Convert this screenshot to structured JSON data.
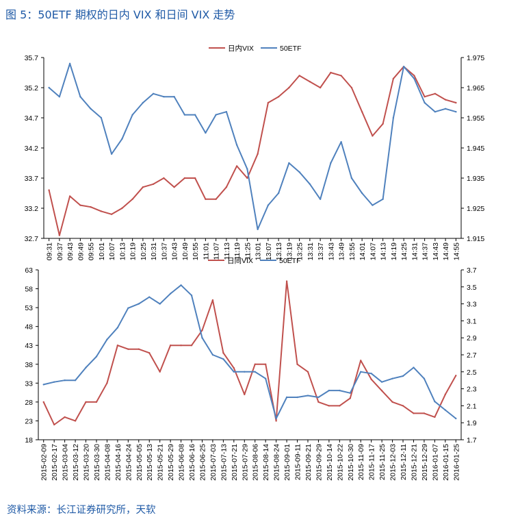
{
  "figure_title": "图 5：50ETF 期权的日内 VIX 和日间 VIX 走势",
  "source": "资料来源：长江证券研究所，天软",
  "colors": {
    "vix": "#c0504d",
    "etf": "#4f81bd",
    "title": "#1f5aa6"
  },
  "chart_data": [
    {
      "type": "line",
      "legend_position": "top-center",
      "categories": [
        "09:31",
        "09:37",
        "09:43",
        "09:49",
        "09:55",
        "10:01",
        "10:07",
        "10:13",
        "10:19",
        "10:25",
        "10:31",
        "10:37",
        "10:43",
        "10:49",
        "10:55",
        "11:01",
        "11:07",
        "11:13",
        "11:19",
        "11:25",
        "13:01",
        "13:07",
        "13:13",
        "13:19",
        "13:25",
        "13:31",
        "13:37",
        "13:43",
        "13:49",
        "13:55",
        "14:01",
        "14:07",
        "14:13",
        "14:19",
        "14:25",
        "14:31",
        "14:37",
        "14:43",
        "14:49",
        "14:55"
      ],
      "left_axis": {
        "min": 32.7,
        "max": 35.7,
        "ticks": [
          "32.7",
          "33.2",
          "33.7",
          "34.2",
          "34.7",
          "35.2",
          "35.7"
        ]
      },
      "right_axis": {
        "min": 1.915,
        "max": 1.975,
        "ticks": [
          "1.915",
          "1.925",
          "1.935",
          "1.945",
          "1.955",
          "1.965",
          "1.975"
        ]
      },
      "series": [
        {
          "name": "日内VIX",
          "axis": "left",
          "color": "#c0504d",
          "values": [
            33.5,
            32.75,
            33.4,
            33.25,
            33.22,
            33.15,
            33.1,
            33.2,
            33.35,
            33.55,
            33.6,
            33.7,
            33.55,
            33.7,
            33.7,
            33.35,
            33.35,
            33.55,
            33.9,
            33.7,
            34.1,
            34.95,
            35.05,
            35.2,
            35.4,
            35.3,
            35.2,
            35.45,
            35.4,
            35.2,
            34.8,
            34.4,
            34.6,
            35.35,
            35.55,
            35.4,
            35.05,
            35.1,
            35,
            34.95
          ]
        },
        {
          "name": "50ETF",
          "axis": "right",
          "color": "#4f81bd",
          "values": [
            1.965,
            1.962,
            1.973,
            1.962,
            1.958,
            1.955,
            1.943,
            1.948,
            1.956,
            1.96,
            1.963,
            1.962,
            1.962,
            1.956,
            1.956,
            1.95,
            1.956,
            1.957,
            1.946,
            1.938,
            1.918,
            1.926,
            1.93,
            1.94,
            1.937,
            1.933,
            1.928,
            1.94,
            1.947,
            1.935,
            1.93,
            1.926,
            1.928,
            1.955,
            1.972,
            1.968,
            1.96,
            1.957,
            1.958,
            1.957
          ]
        }
      ]
    },
    {
      "type": "line",
      "legend_position": "top-center",
      "categories": [
        "2015-02-09",
        "2015-02-17",
        "2015-03-04",
        "2015-03-12",
        "2015-03-20",
        "2015-03-30",
        "2015-04-08",
        "2015-04-16",
        "2015-04-24",
        "2015-05-05",
        "2015-05-13",
        "2015-05-21",
        "2015-05-29",
        "2015-06-08",
        "2015-06-16",
        "2015-06-25",
        "2015-07-03",
        "2015-07-13",
        "2015-07-21",
        "2015-07-29",
        "2015-08-06",
        "2015-08-14",
        "2015-08-24",
        "2015-09-01",
        "2015-09-11",
        "2015-09-21",
        "2015-09-29",
        "2015-10-14",
        "2015-10-22",
        "2015-10-30",
        "2015-11-09",
        "2015-11-17",
        "2015-11-25",
        "2015-12-03",
        "2015-12-11",
        "2015-12-21",
        "2015-12-29",
        "2016-01-07",
        "2016-01-15",
        "2016-01-25"
      ],
      "left_axis": {
        "min": 18,
        "max": 63,
        "ticks": [
          "18",
          "23",
          "28",
          "33",
          "38",
          "43",
          "48",
          "53",
          "58",
          "63"
        ]
      },
      "right_axis": {
        "min": 1.7,
        "max": 3.7,
        "ticks": [
          "1.7",
          "1.9",
          "2.1",
          "2.3",
          "2.5",
          "2.7",
          "2.9",
          "3.1",
          "3.3",
          "3.5",
          "3.7"
        ]
      },
      "series": [
        {
          "name": "日间VIX",
          "axis": "left",
          "color": "#c0504d",
          "values": [
            28,
            22,
            24,
            23,
            28,
            28,
            33,
            43,
            42,
            42,
            41,
            36,
            43,
            43,
            43,
            47,
            55,
            41,
            37,
            30,
            38,
            38,
            23,
            60,
            38,
            36,
            28,
            27,
            27,
            29,
            39,
            34,
            31,
            28,
            27,
            25,
            25,
            24,
            30,
            35
          ]
        },
        {
          "name": "50ETF",
          "axis": "right",
          "color": "#4f81bd",
          "values": [
            2.35,
            2.38,
            2.4,
            2.4,
            2.55,
            2.68,
            2.88,
            3.02,
            3.25,
            3.3,
            3.38,
            3.3,
            3.42,
            3.52,
            3.4,
            2.9,
            2.7,
            2.65,
            2.5,
            2.5,
            2.5,
            2.42,
            1.95,
            2.2,
            2.2,
            2.22,
            2.2,
            2.28,
            2.28,
            2.25,
            2.5,
            2.48,
            2.38,
            2.42,
            2.45,
            2.55,
            2.42,
            2.15,
            2.05,
            1.95
          ]
        }
      ]
    }
  ]
}
